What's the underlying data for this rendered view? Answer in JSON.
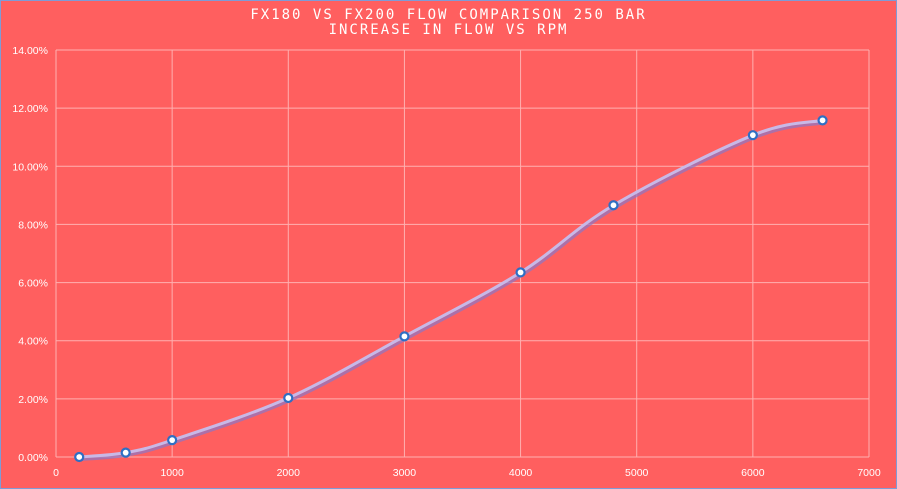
{
  "chart_data": {
    "type": "line",
    "title": "FX180 vs FX200 Flow Comparison   250 bar",
    "subtitle": "Increase in Flow vs RPM",
    "x": [
      200,
      600,
      1000,
      2000,
      3000,
      4000,
      4800,
      6000,
      6600
    ],
    "series": [
      {
        "values": [
          0.0,
          0.0015,
          0.0058,
          0.0203,
          0.0415,
          0.0635,
          0.0866,
          0.1107,
          0.1158
        ]
      }
    ],
    "xlim": [
      0,
      7000
    ],
    "ylim": [
      0,
      0.14
    ],
    "x_ticks": [
      "0",
      "1000",
      "2000",
      "3000",
      "4000",
      "5000",
      "6000",
      "7000"
    ],
    "y_ticks": [
      "0.00%",
      "2.00%",
      "4.00%",
      "6.00%",
      "8.00%",
      "10.00%",
      "12.00%",
      "14.00%"
    ],
    "grid": true,
    "smooth": true,
    "colors": {
      "background": "#ff5f5f",
      "line": "#c9b8e6",
      "line_shadow": "#8a78c8",
      "marker_fill": "#ffffff",
      "marker_edge": "#2f6fc4",
      "grid": "#ffb0b0"
    }
  }
}
